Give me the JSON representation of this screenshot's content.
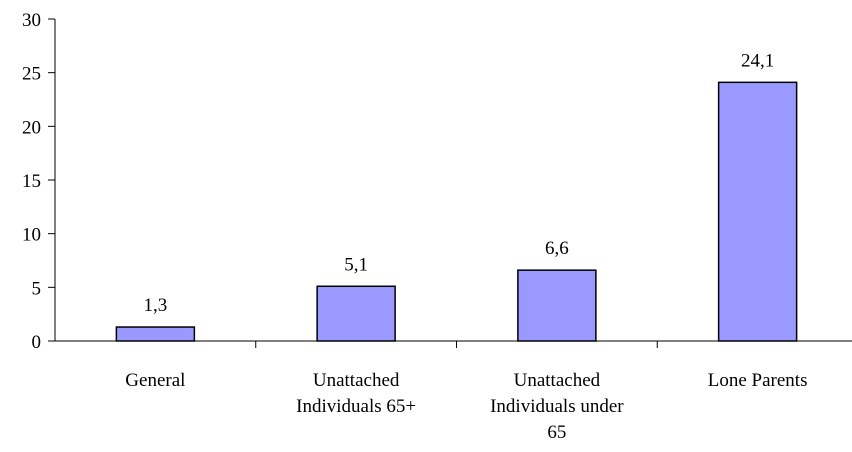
{
  "chart_data": {
    "type": "bar",
    "categories": [
      [
        "General"
      ],
      [
        "Unattached",
        "Individuals 65+"
      ],
      [
        "Unattached",
        "Individuals under",
        "65"
      ],
      [
        "Lone Parents"
      ]
    ],
    "values": [
      1.3,
      5.1,
      6.6,
      24.1
    ],
    "data_labels": [
      "1,3",
      "5,1",
      "6,6",
      "24,1"
    ],
    "yticks": [
      0,
      5,
      10,
      15,
      20,
      25,
      30
    ],
    "ylim": [
      0,
      30
    ],
    "grid": false,
    "legend": "none",
    "bar_color": "#9999ff",
    "bar_edge_color": "#000000"
  }
}
